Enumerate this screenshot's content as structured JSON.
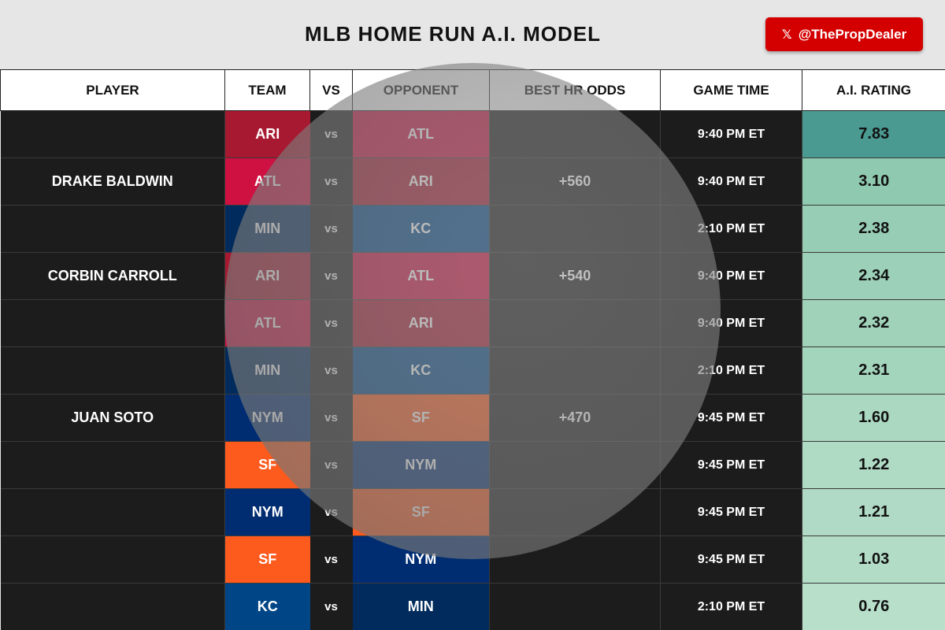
{
  "header": {
    "title": "MLB HOME RUN A.I. MODEL",
    "social_handle": "@ThePropDealer",
    "social_icon": "x-logo-icon"
  },
  "columns": [
    "PLAYER",
    "TEAM",
    "VS",
    "OPPONENT",
    "BEST HR ODDS",
    "GAME TIME",
    "A.I. RATING"
  ],
  "team_colors": {
    "ARI": "#a71930",
    "ATL": "#ce1141",
    "MIN": "#002b5c",
    "KC": "#004687",
    "NYM": "#002d72",
    "SF": "#fd5a1e"
  },
  "rows": [
    {
      "player": "",
      "team": "ARI",
      "vs": "vs",
      "opponent": "ATL",
      "odds": "",
      "time": "9:40 PM ET",
      "rating": "7.83"
    },
    {
      "player": "DRAKE BALDWIN",
      "team": "ATL",
      "vs": "vs",
      "opponent": "ARI",
      "odds": "+560",
      "time": "9:40 PM ET",
      "rating": "3.10"
    },
    {
      "player": "",
      "team": "MIN",
      "vs": "vs",
      "opponent": "KC",
      "odds": "",
      "time": "2:10 PM ET",
      "rating": "2.38"
    },
    {
      "player": "CORBIN CARROLL",
      "team": "ARI",
      "vs": "vs",
      "opponent": "ATL",
      "odds": "+540",
      "time": "9:40 PM ET",
      "rating": "2.34"
    },
    {
      "player": "",
      "team": "ATL",
      "vs": "vs",
      "opponent": "ARI",
      "odds": "",
      "time": "9:40 PM ET",
      "rating": "2.32"
    },
    {
      "player": "",
      "team": "MIN",
      "vs": "vs",
      "opponent": "KC",
      "odds": "",
      "time": "2:10 PM ET",
      "rating": "2.31"
    },
    {
      "player": "JUAN SOTO",
      "team": "NYM",
      "vs": "vs",
      "opponent": "SF",
      "odds": "+470",
      "time": "9:45 PM ET",
      "rating": "1.60"
    },
    {
      "player": "",
      "team": "SF",
      "vs": "vs",
      "opponent": "NYM",
      "odds": "",
      "time": "9:45 PM ET",
      "rating": "1.22"
    },
    {
      "player": "",
      "team": "NYM",
      "vs": "vs",
      "opponent": "SF",
      "odds": "",
      "time": "9:45 PM ET",
      "rating": "1.21"
    },
    {
      "player": "",
      "team": "SF",
      "vs": "vs",
      "opponent": "NYM",
      "odds": "",
      "time": "9:45 PM ET",
      "rating": "1.03"
    },
    {
      "player": "",
      "team": "KC",
      "vs": "vs",
      "opponent": "MIN",
      "odds": "",
      "time": "2:10 PM ET",
      "rating": "0.76"
    }
  ],
  "rating_colors": [
    "#4a9a92",
    "#8fc9b0",
    "#98cdb5",
    "#9dd0b8",
    "#a0d2ba",
    "#a3d4bc",
    "#abd8c1",
    "#afdac4",
    "#b0dac5",
    "#b3dcc7",
    "#b8dfca"
  ]
}
